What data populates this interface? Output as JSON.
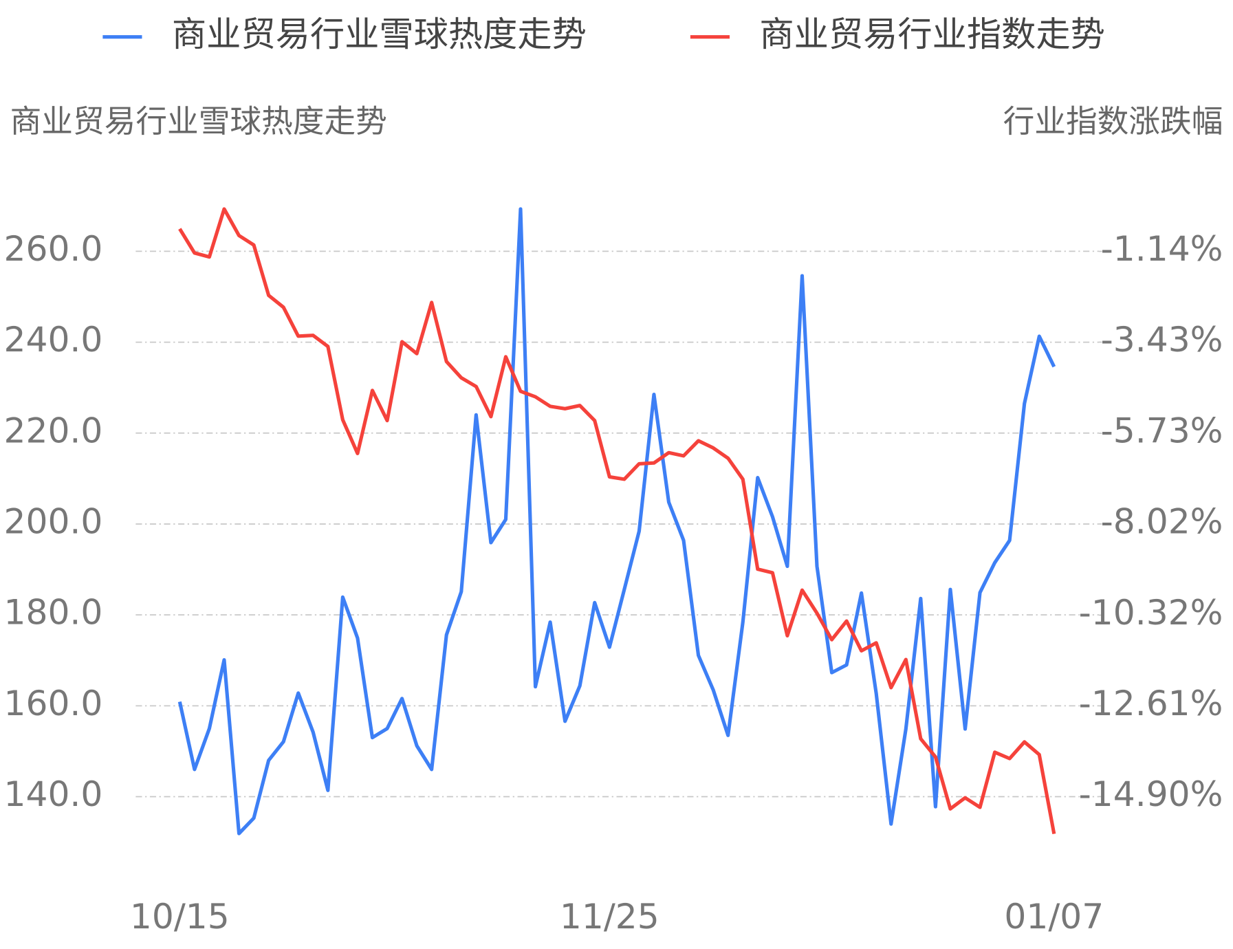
{
  "chart_data": {
    "type": "line",
    "y_label": "商业贸易行业雪球热度走势",
    "y2_label": "行业指数涨跌幅",
    "categories": [
      "10/15",
      null,
      null,
      null,
      null,
      null,
      null,
      null,
      null,
      null,
      null,
      null,
      null,
      null,
      null,
      null,
      null,
      null,
      null,
      null,
      null,
      null,
      null,
      null,
      null,
      null,
      null,
      null,
      null,
      "11/25",
      null,
      null,
      null,
      null,
      null,
      null,
      null,
      null,
      null,
      null,
      null,
      null,
      null,
      null,
      null,
      null,
      null,
      null,
      null,
      null,
      null,
      null,
      null,
      null,
      null,
      null,
      null,
      null,
      null,
      "01/07"
    ],
    "series": [
      {
        "name": "商业贸易行业雪球热度走势",
        "color": "#3d7ff5",
        "values": [
          160.9,
          146.0,
          155.0,
          170.1,
          131.9,
          135.3,
          148.0,
          152.1,
          162.8,
          154.2,
          141.4,
          183.9,
          174.9,
          153.0,
          155.0,
          161.6,
          151.2,
          146.0,
          175.6,
          185.1,
          224.0,
          195.9,
          201.0,
          269.3,
          164.2,
          178.4,
          156.6,
          164.4,
          182.7,
          172.9,
          185.6,
          198.4,
          228.5,
          204.8,
          196.4,
          171.1,
          163.5,
          153.5,
          178.4,
          210.2,
          201.6,
          190.7,
          254.6,
          190.7,
          167.3,
          169.0,
          184.8,
          162.7,
          134.0,
          154.9,
          183.6,
          137.8,
          185.6,
          154.9,
          184.9,
          191.5,
          196.4,
          226.5,
          241.3,
          234.6
        ]
      },
      {
        "name": "商业贸易行业指数走势",
        "color": "#f5423b",
        "axis": "y2",
        "values": [
          -0.57,
          -1.18,
          -1.28,
          -0.07,
          -0.74,
          -0.98,
          -2.25,
          -2.55,
          -3.28,
          -3.26,
          -3.54,
          -5.39,
          -6.24,
          -4.65,
          -5.41,
          -3.42,
          -3.72,
          -2.43,
          -3.92,
          -4.33,
          -4.55,
          -5.31,
          -3.8,
          -4.67,
          -4.81,
          -5.05,
          -5.11,
          -5.03,
          -5.41,
          -6.83,
          -6.89,
          -6.5,
          -6.48,
          -6.22,
          -6.3,
          -5.92,
          -6.1,
          -6.36,
          -6.89,
          -9.16,
          -9.25,
          -10.84,
          -9.69,
          -10.27,
          -10.94,
          -10.47,
          -11.22,
          -11.02,
          -12.15,
          -11.44,
          -13.44,
          -13.9,
          -15.21,
          -14.93,
          -15.17,
          -13.78,
          -13.94,
          -13.52,
          -13.84,
          -15.84
        ]
      }
    ],
    "ylim": [
      130,
      270
    ],
    "yticks": [
      {
        "value": 140,
        "label": "140.0"
      },
      {
        "value": 160,
        "label": "160.0"
      },
      {
        "value": 180,
        "label": "180.0"
      },
      {
        "value": 200,
        "label": "200.0"
      },
      {
        "value": 220,
        "label": "220.0"
      },
      {
        "value": 240,
        "label": "240.0"
      },
      {
        "value": 260,
        "label": "260.0"
      }
    ],
    "y2lim": [
      -16.05,
      0.01
    ],
    "y2ticks": [
      {
        "value": -14.9,
        "label": "-14.90%"
      },
      {
        "value": -12.61,
        "label": "-12.61%"
      },
      {
        "value": -10.32,
        "label": "-10.32%"
      },
      {
        "value": -8.02,
        "label": "-8.02%"
      },
      {
        "value": -5.73,
        "label": "-5.73%"
      },
      {
        "value": -3.43,
        "label": "-3.43%"
      },
      {
        "value": -1.14,
        "label": "-1.14%"
      }
    ],
    "grid": true,
    "legend": "top"
  }
}
